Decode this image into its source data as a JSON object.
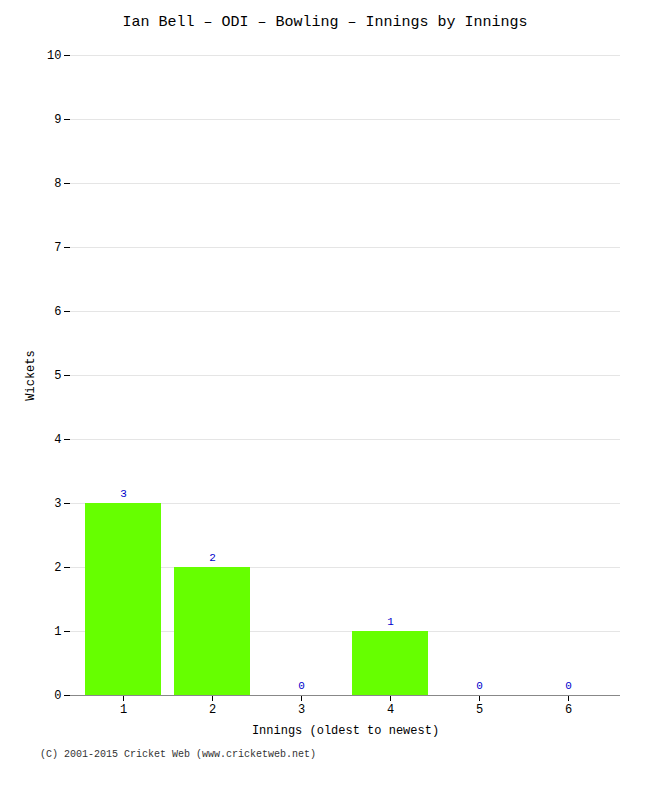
{
  "chart_data": {
    "type": "bar",
    "title": "Ian Bell – ODI – Bowling – Innings by Innings",
    "xlabel": "Innings (oldest to newest)",
    "ylabel": "Wickets",
    "categories": [
      1,
      2,
      3,
      4,
      5,
      6
    ],
    "values": [
      3,
      2,
      0,
      1,
      0,
      0
    ],
    "color": "#66ff00",
    "ylim": [
      0,
      10
    ],
    "yticks": [
      0,
      1,
      2,
      3,
      4,
      5,
      6,
      7,
      8,
      9,
      10
    ],
    "grid": true,
    "data_labels": true,
    "caption": "(C) 2001-2015 Cricket Web (www.cricketweb.net)"
  }
}
